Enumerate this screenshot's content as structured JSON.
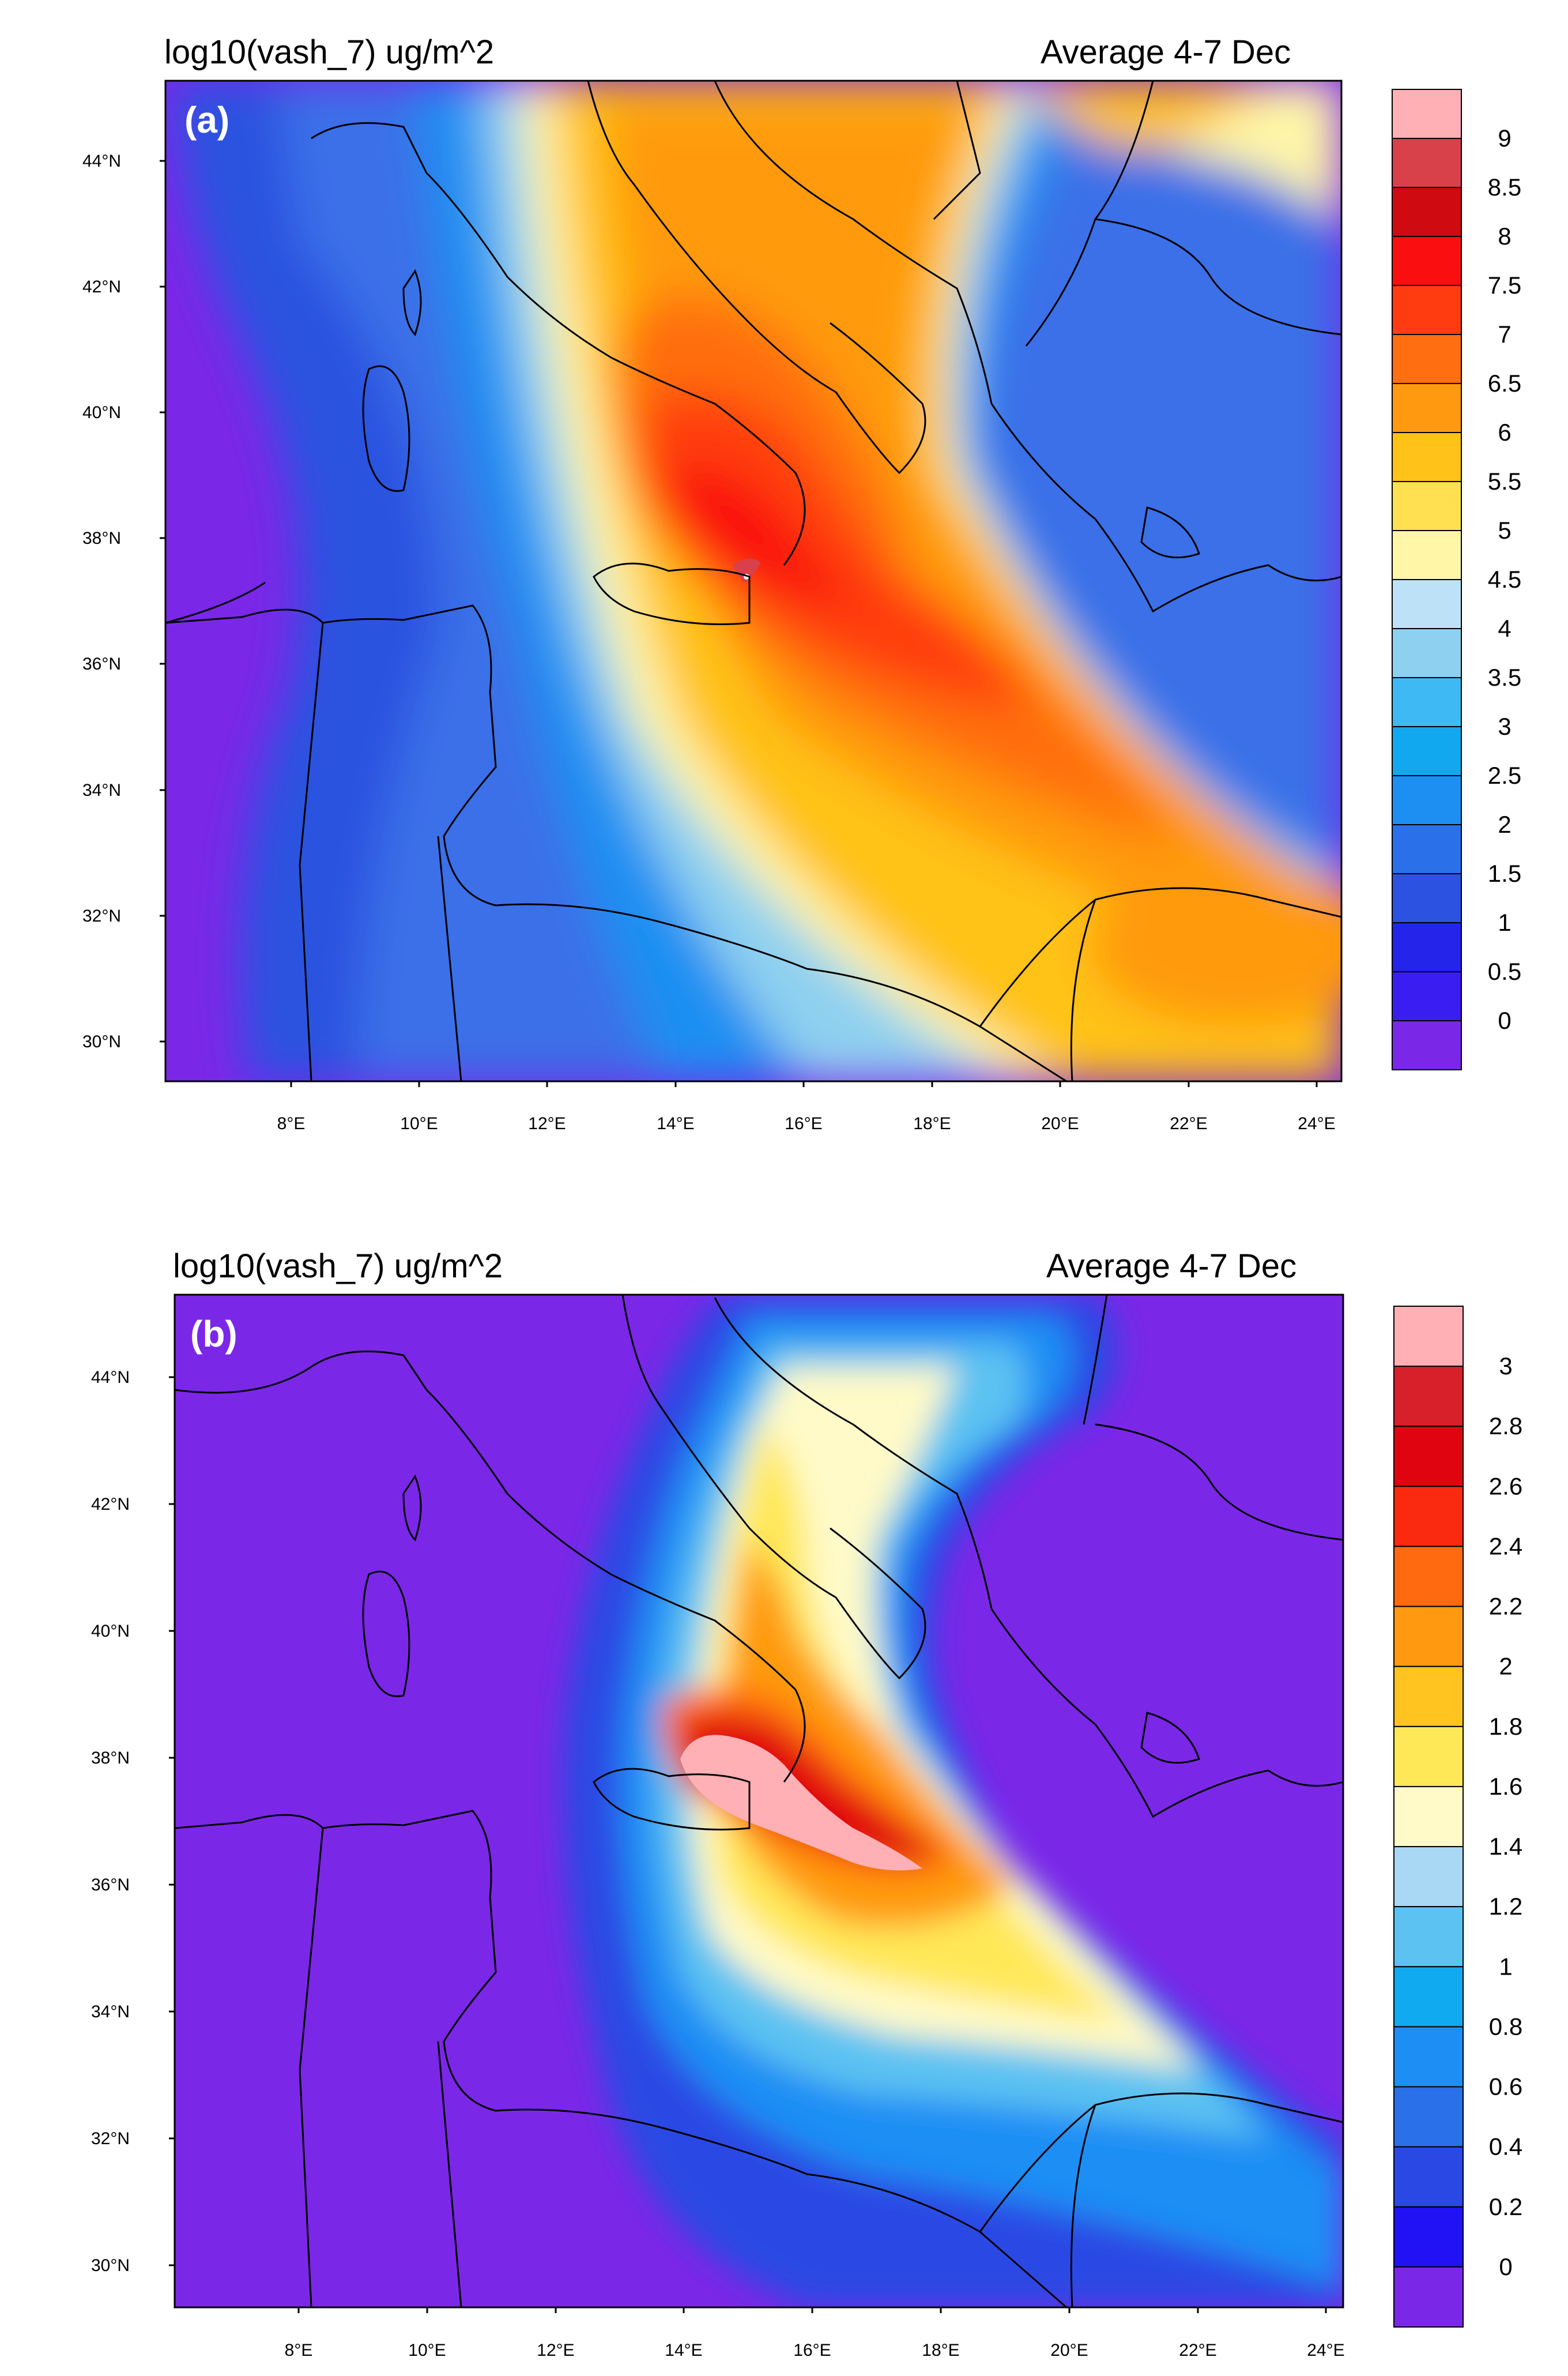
{
  "panels": [
    {
      "label": "(a)",
      "title_left": "log10(vash_7) ug/m^2",
      "title_right": "Average 4-7 Dec",
      "colorbar_labels": [
        "9",
        "8.5",
        "8",
        "7.5",
        "7",
        "6.5",
        "6",
        "5.5",
        "5",
        "4.5",
        "4",
        "3.5",
        "3",
        "2.5",
        "2",
        "1.5",
        "1",
        "0.5",
        "0"
      ],
      "colorbar_colors": [
        "#ffb0b5",
        "#d8404a",
        "#cf0a10",
        "#fa0e10",
        "#ff3c10",
        "#ff6e10",
        "#ff9a10",
        "#ffc218",
        "#ffe050",
        "#fff6a8",
        "#bde2f7",
        "#8ed0f0",
        "#3fb9f3",
        "#11a8ef",
        "#1d8ff2",
        "#2a70e8",
        "#2b52e0",
        "#2424ea",
        "#3a1df0",
        "#7b27e8"
      ]
    },
    {
      "label": "(b)",
      "title_left": "log10(vash_7) ug/m^2",
      "title_right": "Average 4-7 Dec",
      "colorbar_labels": [
        "3",
        "2.8",
        "2.6",
        "2.4",
        "2.2",
        "2",
        "1.8",
        "1.6",
        "1.4",
        "1.2",
        "1",
        "0.8",
        "0.6",
        "0.4",
        "0.2",
        "0"
      ],
      "colorbar_colors": [
        "#ffb0b5",
        "#d8202a",
        "#e00410",
        "#fa2a10",
        "#ff6a10",
        "#ff9a10",
        "#ffc420",
        "#ffe858",
        "#fffac8",
        "#a8d8f4",
        "#5cc2f2",
        "#10aaf0",
        "#1c8ef4",
        "#2a70e8",
        "#2a48e4",
        "#2012f4",
        "#7b27e8"
      ]
    }
  ],
  "lon_labels": [
    "8°E",
    "10°E",
    "12°E",
    "14°E",
    "16°E",
    "18°E",
    "20°E",
    "22°E",
    "24°E"
  ],
  "lat_labels": [
    "30°N",
    "32°N",
    "34°N",
    "36°N",
    "38°N",
    "40°N",
    "42°N",
    "44°N"
  ],
  "background_color": "#7b27e8"
}
